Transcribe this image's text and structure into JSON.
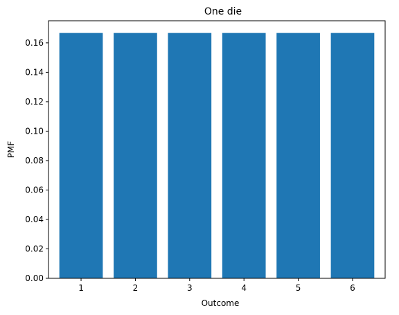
{
  "chart_data": {
    "type": "bar",
    "title": "One die",
    "xlabel": "Outcome",
    "ylabel": "PMF",
    "categories": [
      "1",
      "2",
      "3",
      "4",
      "5",
      "6"
    ],
    "values": [
      0.1667,
      0.1667,
      0.1667,
      0.1667,
      0.1667,
      0.1667
    ],
    "ylim": [
      0,
      0.175
    ],
    "yticks": [
      "0.00",
      "0.02",
      "0.04",
      "0.06",
      "0.08",
      "0.10",
      "0.12",
      "0.14",
      "0.16"
    ],
    "bar_color": "#1f77b4",
    "grid": false
  }
}
